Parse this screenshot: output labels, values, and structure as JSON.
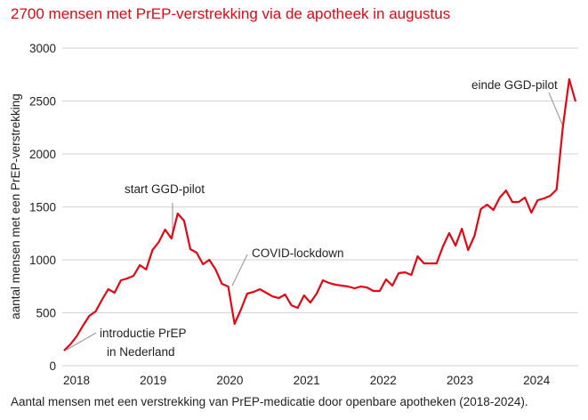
{
  "title": "2700 mensen met PrEP-verstrekking via de apotheek in augustus",
  "caption": "Aantal mensen met een verstrekking van PrEP-medicatie door openbare apotheken (2018-2024).",
  "colors": {
    "line": "#e30613",
    "title": "#e30613",
    "grid": "#d9d9d9",
    "annotation_line": "#999999"
  },
  "chart_data": {
    "type": "line",
    "title": "2700 mensen met PrEP-verstrekking via de apotheek in augustus",
    "xlabel": "",
    "ylabel": "aantal mensen met een PrEP-verstrekking",
    "ylim": [
      0,
      3000
    ],
    "yticks": [
      "0",
      "500",
      "1000",
      "1500",
      "2000",
      "2500",
      "3000"
    ],
    "xticks": [
      "2018",
      "2019",
      "2020",
      "2021",
      "2022",
      "2023",
      "2024"
    ],
    "grid": true,
    "series": [
      {
        "name": "PrEP-verstrekking",
        "values": [
          143,
          202,
          277,
          378,
          471,
          513,
          622,
          723,
          689,
          807,
          824,
          849,
          950,
          908,
          1092,
          1168,
          1286,
          1202,
          1437,
          1370,
          1101,
          1067,
          958,
          1000,
          908,
          773,
          748,
          395,
          529,
          681,
          697,
          723,
          689,
          655,
          639,
          672,
          571,
          546,
          664,
          597,
          681,
          807,
          781,
          765,
          756,
          748,
          731,
          748,
          739,
          706,
          706,
          815,
          756,
          874,
          882,
          857,
          1034,
          966,
          966,
          966,
          1126,
          1252,
          1134,
          1294,
          1092,
          1227,
          1479,
          1521,
          1471,
          1588,
          1655,
          1546,
          1546,
          1588,
          1445,
          1563,
          1580,
          1605,
          1664,
          2260,
          2706,
          2496
        ]
      }
    ],
    "annotations": [
      {
        "text_lines": [
          "introductie PrEP",
          "in Nederland"
        ],
        "point_index": 0
      },
      {
        "text_lines": [
          "start GGD-pilot"
        ],
        "point_index": 17
      },
      {
        "text_lines": [
          "COVID-lockdown"
        ],
        "point_index": 26
      },
      {
        "text_lines": [
          "einde GGD-pilot"
        ],
        "point_index": 79
      }
    ]
  }
}
